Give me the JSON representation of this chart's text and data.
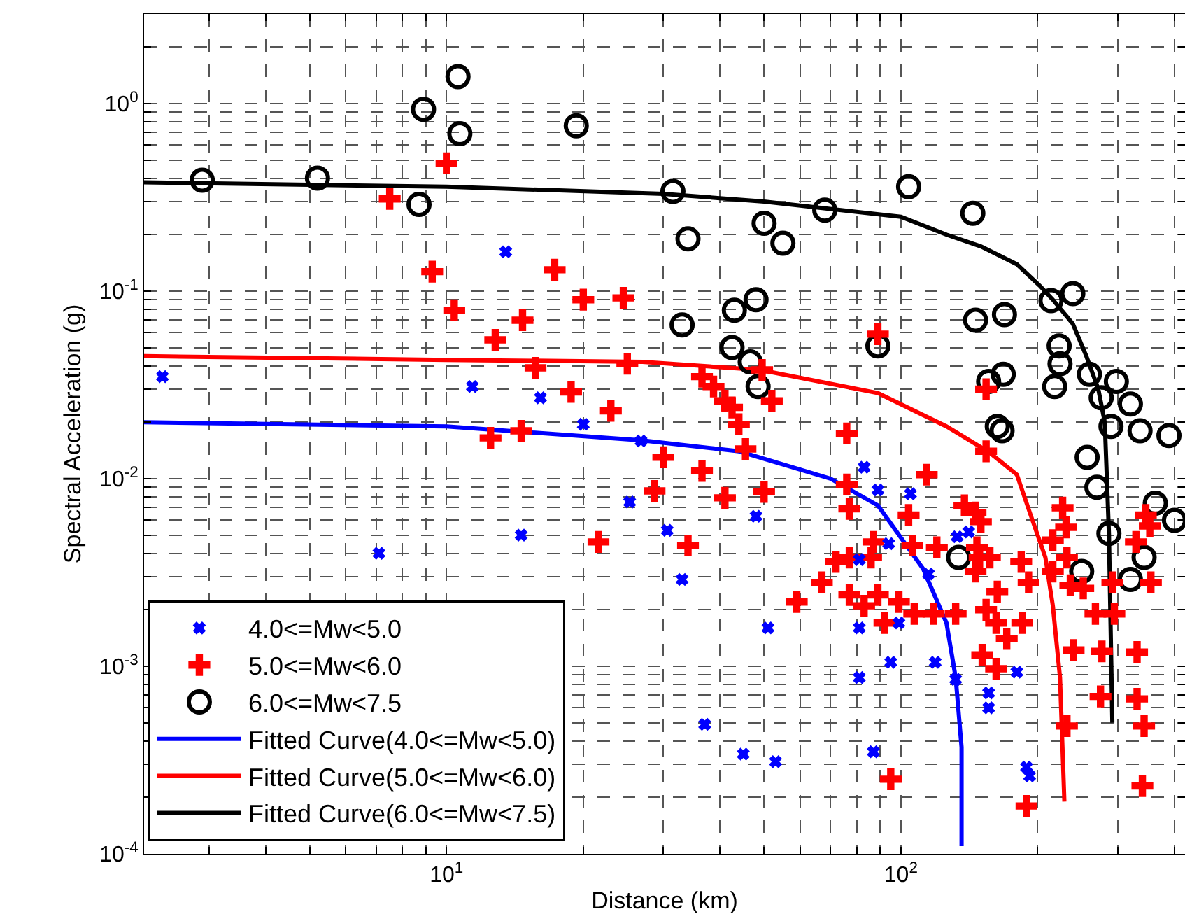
{
  "chart_data": {
    "type": "scatter",
    "xlabel": "Distance (km)",
    "ylabel": "Spectral Acceleration (g)",
    "log": "xy",
    "grid": true,
    "legend": "bottom left",
    "xlim": [
      2.16,
      422
    ],
    "ylim": [
      0.0001,
      3
    ],
    "xticks": [
      {
        "value": 3,
        "label": null
      },
      {
        "value": 4,
        "label": null
      },
      {
        "value": 5,
        "label": null
      },
      {
        "value": 6,
        "label": null
      },
      {
        "value": 7,
        "label": null
      },
      {
        "value": 8,
        "label": null
      },
      {
        "value": 9,
        "label": null
      },
      {
        "value": 10,
        "label": "10$^{1}$"
      },
      {
        "value": 20,
        "label": null
      },
      {
        "value": 30,
        "label": null
      },
      {
        "value": 40,
        "label": null
      },
      {
        "value": 50,
        "label": null
      },
      {
        "value": 60,
        "label": null
      },
      {
        "value": 70,
        "label": null
      },
      {
        "value": 80,
        "label": null
      },
      {
        "value": 90,
        "label": null
      },
      {
        "value": 100,
        "label": "10$^{2}$"
      },
      {
        "value": 200,
        "label": null
      },
      {
        "value": 300,
        "label": null
      },
      {
        "value": 400,
        "label": null
      }
    ],
    "yticks": [
      {
        "value": 0.0001,
        "label": "10$^{-4}$"
      },
      {
        "value": 0.0002,
        "label": null
      },
      {
        "value": 0.0003,
        "label": null
      },
      {
        "value": 0.0004,
        "label": null
      },
      {
        "value": 0.0005,
        "label": null
      },
      {
        "value": 0.0006,
        "label": null
      },
      {
        "value": 0.0007,
        "label": null
      },
      {
        "value": 0.0008,
        "label": null
      },
      {
        "value": 0.0009,
        "label": null
      },
      {
        "value": 0.001,
        "label": "10$^{-3}$"
      },
      {
        "value": 0.002,
        "label": null
      },
      {
        "value": 0.003,
        "label": null
      },
      {
        "value": 0.004,
        "label": null
      },
      {
        "value": 0.005,
        "label": null
      },
      {
        "value": 0.006,
        "label": null
      },
      {
        "value": 0.007,
        "label": null
      },
      {
        "value": 0.008,
        "label": null
      },
      {
        "value": 0.009,
        "label": null
      },
      {
        "value": 0.01,
        "label": "10$^{-2}$"
      },
      {
        "value": 0.02,
        "label": null
      },
      {
        "value": 0.03,
        "label": null
      },
      {
        "value": 0.04,
        "label": null
      },
      {
        "value": 0.05,
        "label": null
      },
      {
        "value": 0.06,
        "label": null
      },
      {
        "value": 0.07,
        "label": null
      },
      {
        "value": 0.08,
        "label": null
      },
      {
        "value": 0.09,
        "label": null
      },
      {
        "value": 0.1,
        "label": "10$^{-1}$"
      },
      {
        "value": 0.2,
        "label": null
      },
      {
        "value": 0.3,
        "label": null
      },
      {
        "value": 0.4,
        "label": null
      },
      {
        "value": 0.5,
        "label": null
      },
      {
        "value": 0.6,
        "label": null
      },
      {
        "value": 0.7,
        "label": null
      },
      {
        "value": 0.8,
        "label": null
      },
      {
        "value": 0.9,
        "label": null
      },
      {
        "value": 1,
        "label": "10$^{0}$"
      },
      {
        "value": 2,
        "label": null
      }
    ],
    "series": [
      {
        "name": "4.0<=Mw<5.0",
        "color": "#0000ff",
        "marker": "x",
        "x": [
          2.37,
          13.5,
          11.4,
          16.1,
          20,
          26.8,
          25.3,
          14.6,
          7.1,
          30.6,
          33,
          48,
          51,
          81,
          81,
          83,
          89,
          105,
          94,
          99,
          133,
          141,
          115,
          81,
          95,
          119,
          132,
          156,
          156,
          180,
          37,
          45,
          53,
          87,
          189,
          192
        ],
        "values": [
          0.035,
          0.162,
          0.031,
          0.027,
          0.0195,
          0.0159,
          0.0075,
          0.005,
          0.004,
          0.0053,
          0.0029,
          0.0063,
          0.0016,
          0.0016,
          0.0037,
          0.0115,
          0.0087,
          0.0083,
          0.0045,
          0.0017,
          0.0049,
          0.0052,
          0.0031,
          0.00087,
          0.00105,
          0.00105,
          0.00085,
          0.00072,
          0.0006,
          0.00093,
          0.00049,
          0.00034,
          0.00031,
          0.00035,
          0.00029,
          0.00026
        ]
      },
      {
        "name": "5.0<=Mw<6.0",
        "color": "#ff0000",
        "marker": "cross",
        "x": [
          10,
          7.5,
          9.3,
          17.3,
          10.4,
          20,
          24.5,
          14.7,
          12.8,
          15.7,
          18.8,
          23,
          25,
          12.5,
          14.6,
          30,
          28.7,
          21.6,
          89,
          36.5,
          38.7,
          41,
          42.5,
          44,
          49.5,
          52,
          76,
          154,
          45.5,
          154,
          36.5,
          41,
          50,
          34,
          114,
          76,
          77,
          104,
          87,
          72,
          77,
          86,
          67,
          59,
          77,
          83,
          89,
          92,
          99,
          107,
          118,
          132,
          106,
          120,
          138,
          146,
          150,
          147,
          149,
          146,
          157,
          163,
          154,
          162,
          171,
          185,
          184,
          191,
          151,
          162,
          95,
          189,
          227,
          231,
          216,
          232,
          216,
          236,
          252,
          268,
          295,
          240,
          277,
          331,
          275,
          331,
          232,
          343,
          340,
          346,
          353,
          329,
          355,
          292
        ],
        "values": [
          0.48,
          0.31,
          0.127,
          0.13,
          0.079,
          0.09,
          0.092,
          0.07,
          0.055,
          0.039,
          0.029,
          0.023,
          0.041,
          0.0165,
          0.018,
          0.013,
          0.0086,
          0.0046,
          0.059,
          0.035,
          0.031,
          0.026,
          0.024,
          0.0195,
          0.038,
          0.026,
          0.0174,
          0.03,
          0.0144,
          0.014,
          0.011,
          0.0079,
          0.0085,
          0.0044,
          0.0105,
          0.0093,
          0.0069,
          0.0064,
          0.0046,
          0.0036,
          0.0038,
          0.0038,
          0.0028,
          0.0022,
          0.0024,
          0.0021,
          0.0024,
          0.0017,
          0.0022,
          0.0019,
          0.0019,
          0.0019,
          0.0044,
          0.0043,
          0.0072,
          0.0066,
          0.0059,
          0.0043,
          0.0038,
          0.0032,
          0.0038,
          0.0025,
          0.002,
          0.0017,
          0.0014,
          0.0017,
          0.0036,
          0.0028,
          0.00115,
          0.00097,
          0.00025,
          0.00018,
          0.007,
          0.0055,
          0.0047,
          0.0038,
          0.0032,
          0.0027,
          0.0026,
          0.0019,
          0.0019,
          0.00122,
          0.0012,
          0.00119,
          0.00069,
          0.00067,
          0.00048,
          0.00048,
          0.00023,
          0.0064,
          0.0056,
          0.0046,
          0.0028,
          0.0028
        ]
      },
      {
        "name": "6.0<=Mw<7.5",
        "color": "#000000",
        "marker": "circle",
        "x": [
          2.9,
          5.2,
          8.9,
          8.7,
          10.6,
          10.7,
          19.3,
          31.5,
          34,
          50,
          55,
          68,
          104,
          144,
          33,
          43,
          48,
          42.5,
          46.6,
          48.5,
          89,
          146,
          169,
          214,
          239,
          223,
          224,
          218,
          156,
          168,
          163,
          167,
          260,
          298,
          276,
          320,
          290,
          336,
          389,
          257,
          270,
          287,
          363,
          400,
          343,
          250,
          320,
          134
        ],
        "values": [
          0.39,
          0.4,
          0.93,
          0.29,
          1.39,
          0.69,
          0.76,
          0.34,
          0.19,
          0.23,
          0.18,
          0.27,
          0.36,
          0.26,
          0.066,
          0.079,
          0.09,
          0.05,
          0.042,
          0.031,
          0.051,
          0.07,
          0.075,
          0.089,
          0.097,
          0.051,
          0.041,
          0.031,
          0.033,
          0.036,
          0.019,
          0.018,
          0.036,
          0.033,
          0.027,
          0.025,
          0.019,
          0.018,
          0.017,
          0.013,
          0.009,
          0.0051,
          0.0074,
          0.006,
          0.0038,
          0.0032,
          0.0029,
          0.0038
        ]
      },
      {
        "name": "Fitted Curve(4.0<=Mw<5.0)",
        "color": "#0000ff",
        "type": "line",
        "marker": "none",
        "line_style": "solid",
        "x": [
          2.16,
          10,
          27,
          44,
          70,
          89,
          112,
          126,
          132,
          136,
          136
        ],
        "values": [
          0.02,
          0.019,
          0.016,
          0.014,
          0.01,
          0.0072,
          0.0033,
          0.0017,
          0.00087,
          0.00037,
          0.00011
        ]
      },
      {
        "name": "Fitted Curve(5.0<=Mw<6.0)",
        "color": "#ff0000",
        "type": "line",
        "marker": "none",
        "line_style": "solid",
        "x": [
          2.16,
          10,
          27,
          49,
          89,
          126,
          156,
          180,
          193,
          208,
          216,
          224,
          229
        ],
        "values": [
          0.045,
          0.043,
          0.042,
          0.038,
          0.0286,
          0.019,
          0.0139,
          0.0105,
          0.0064,
          0.0038,
          0.0021,
          0.00087,
          0.00019
        ]
      },
      {
        "name": "Fitted Curve(6.0<=Mw<7.5)",
        "color": "#000000",
        "type": "line",
        "marker": "none",
        "line_style": "solid",
        "x": [
          2.16,
          10,
          30,
          50,
          100,
          126,
          150,
          180,
          202,
          216,
          239,
          256,
          272,
          281,
          287,
          292
        ],
        "values": [
          0.38,
          0.36,
          0.33,
          0.3,
          0.249,
          0.2,
          0.173,
          0.139,
          0.107,
          0.09,
          0.067,
          0.045,
          0.03,
          0.02,
          0.0051,
          0.0005
        ]
      }
    ]
  }
}
